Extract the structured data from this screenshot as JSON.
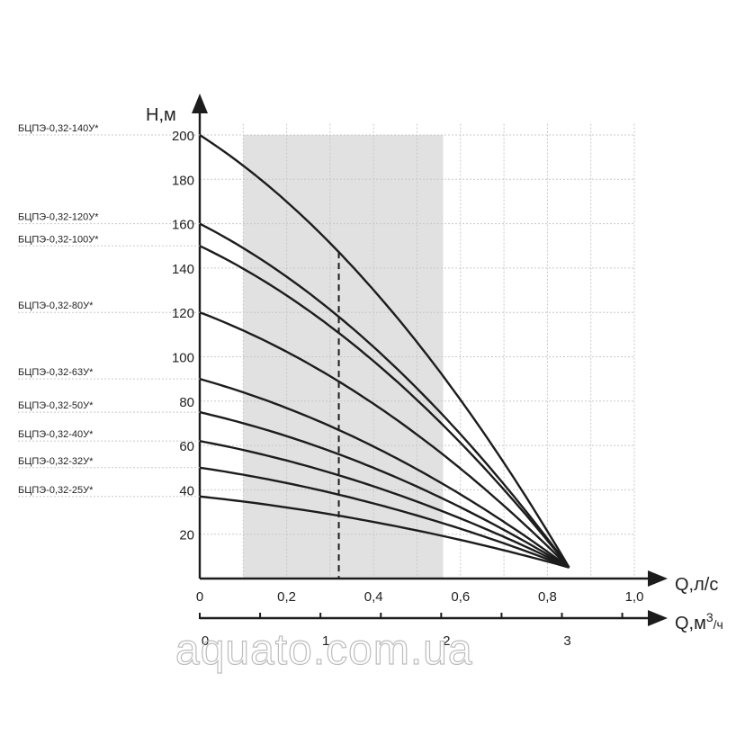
{
  "chart_data": {
    "type": "line",
    "title": "",
    "ylabel": "H,м",
    "xlabel": "Q,л/с",
    "x2label_main": "Q,м",
    "x2label_sup": "3",
    "x2label_tail": "/ч",
    "ylim": [
      0,
      210
    ],
    "xlim": [
      0,
      1.0
    ],
    "y_ticks": [
      "200",
      "180",
      "160",
      "140",
      "120",
      "100",
      "80",
      "60",
      "40",
      "20"
    ],
    "x_ticks": [
      "0",
      "0,2",
      "0,4",
      "0,6",
      "0,8",
      "1,0"
    ],
    "x2_ticks": [
      "0",
      "1",
      "2",
      "3"
    ],
    "working_range": [
      0.1,
      0.56
    ],
    "nominal_flow": 0.32,
    "grid": true,
    "series": [
      {
        "name": "БЦПЭ-0,32-140У*",
        "head_at_zero": 200,
        "endpoint": [
          0.85,
          5
        ]
      },
      {
        "name": "БЦПЭ-0,32-120У*",
        "head_at_zero": 160,
        "endpoint": [
          0.85,
          5
        ]
      },
      {
        "name": "БЦПЭ-0,32-100У*",
        "head_at_zero": 150,
        "endpoint": [
          0.85,
          5
        ]
      },
      {
        "name": "БЦПЭ-0,32-80У*",
        "head_at_zero": 120,
        "endpoint": [
          0.85,
          5
        ]
      },
      {
        "name": "БЦПЭ-0,32-63У*",
        "head_at_zero": 90,
        "endpoint": [
          0.85,
          5
        ]
      },
      {
        "name": "БЦПЭ-0,32-50У*",
        "head_at_zero": 75,
        "endpoint": [
          0.85,
          5
        ]
      },
      {
        "name": "БЦПЭ-0,32-40У*",
        "head_at_zero": 62,
        "endpoint": [
          0.85,
          5
        ]
      },
      {
        "name": "БЦПЭ-0,32-32У*",
        "head_at_zero": 50,
        "endpoint": [
          0.85,
          5
        ]
      },
      {
        "name": "БЦПЭ-0,32-25У*",
        "head_at_zero": 37,
        "endpoint": [
          0.85,
          5
        ]
      }
    ]
  },
  "watermark": "aquato.com.ua"
}
